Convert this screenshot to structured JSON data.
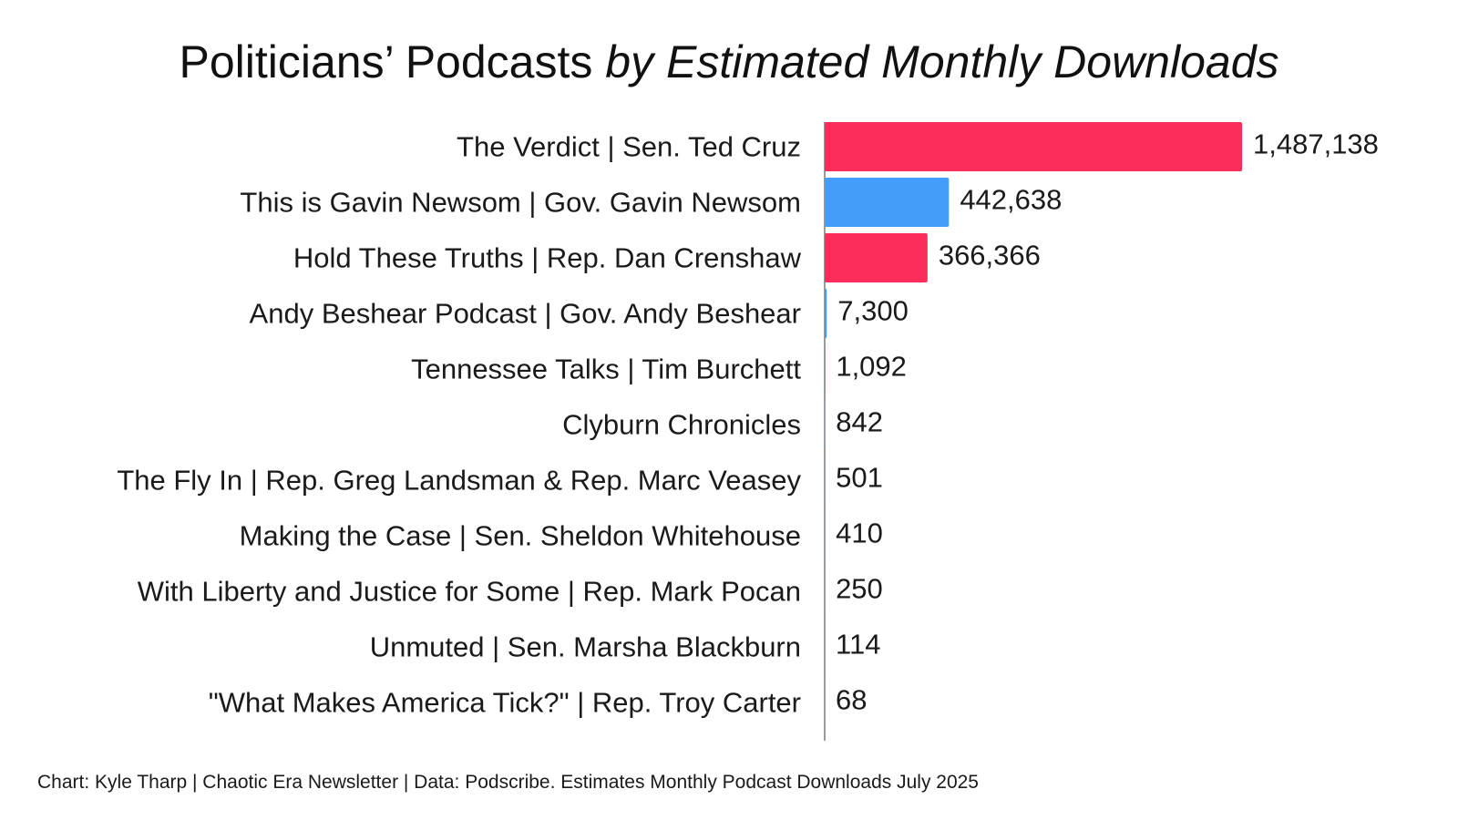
{
  "chart_data": {
    "type": "bar",
    "orientation": "horizontal",
    "title": "Politicians’ Podcasts",
    "title_italic": "by Estimated Monthly Downloads",
    "categories": [
      "The Verdict | Sen. Ted Cruz",
      "This is Gavin Newsom | Gov. Gavin Newsom",
      "Hold These Truths | Rep. Dan Crenshaw",
      "Andy Beshear Podcast | Gov. Andy Beshear",
      "Tennessee Talks | Tim Burchett",
      "Clyburn Chronicles",
      "The Fly In | Rep. Greg Landsman & Rep. Marc Veasey",
      "Making the Case | Sen. Sheldon Whitehouse",
      "With Liberty and Justice for Some | Rep. Mark Pocan",
      "Unmuted | Sen. Marsha Blackburn",
      "\"What Makes America Tick?\" | Rep. Troy Carter"
    ],
    "values": [
      1487138,
      442638,
      366366,
      7300,
      1092,
      842,
      501,
      410,
      250,
      114,
      68
    ],
    "value_labels": [
      "1,487,138",
      "442,638",
      "366,366",
      "7,300",
      "1,092",
      "842",
      "501",
      "410",
      "250",
      "114",
      "68"
    ],
    "parties": [
      "R",
      "D",
      "R",
      "D",
      "R",
      "D",
      "D",
      "D",
      "D",
      "R",
      "D"
    ],
    "colors": {
      "R": "#fc2c5b",
      "D": "#449ef9",
      "axis": "#7a7a7a"
    },
    "xlim": [
      0,
      1487138
    ],
    "xlabel": "",
    "ylabel": "",
    "grid": false,
    "source": "Chart: Kyle Tharp | Chaotic Era Newsletter | Data: Podscribe. Estimates Monthly Podcast Downloads July 2025"
  }
}
